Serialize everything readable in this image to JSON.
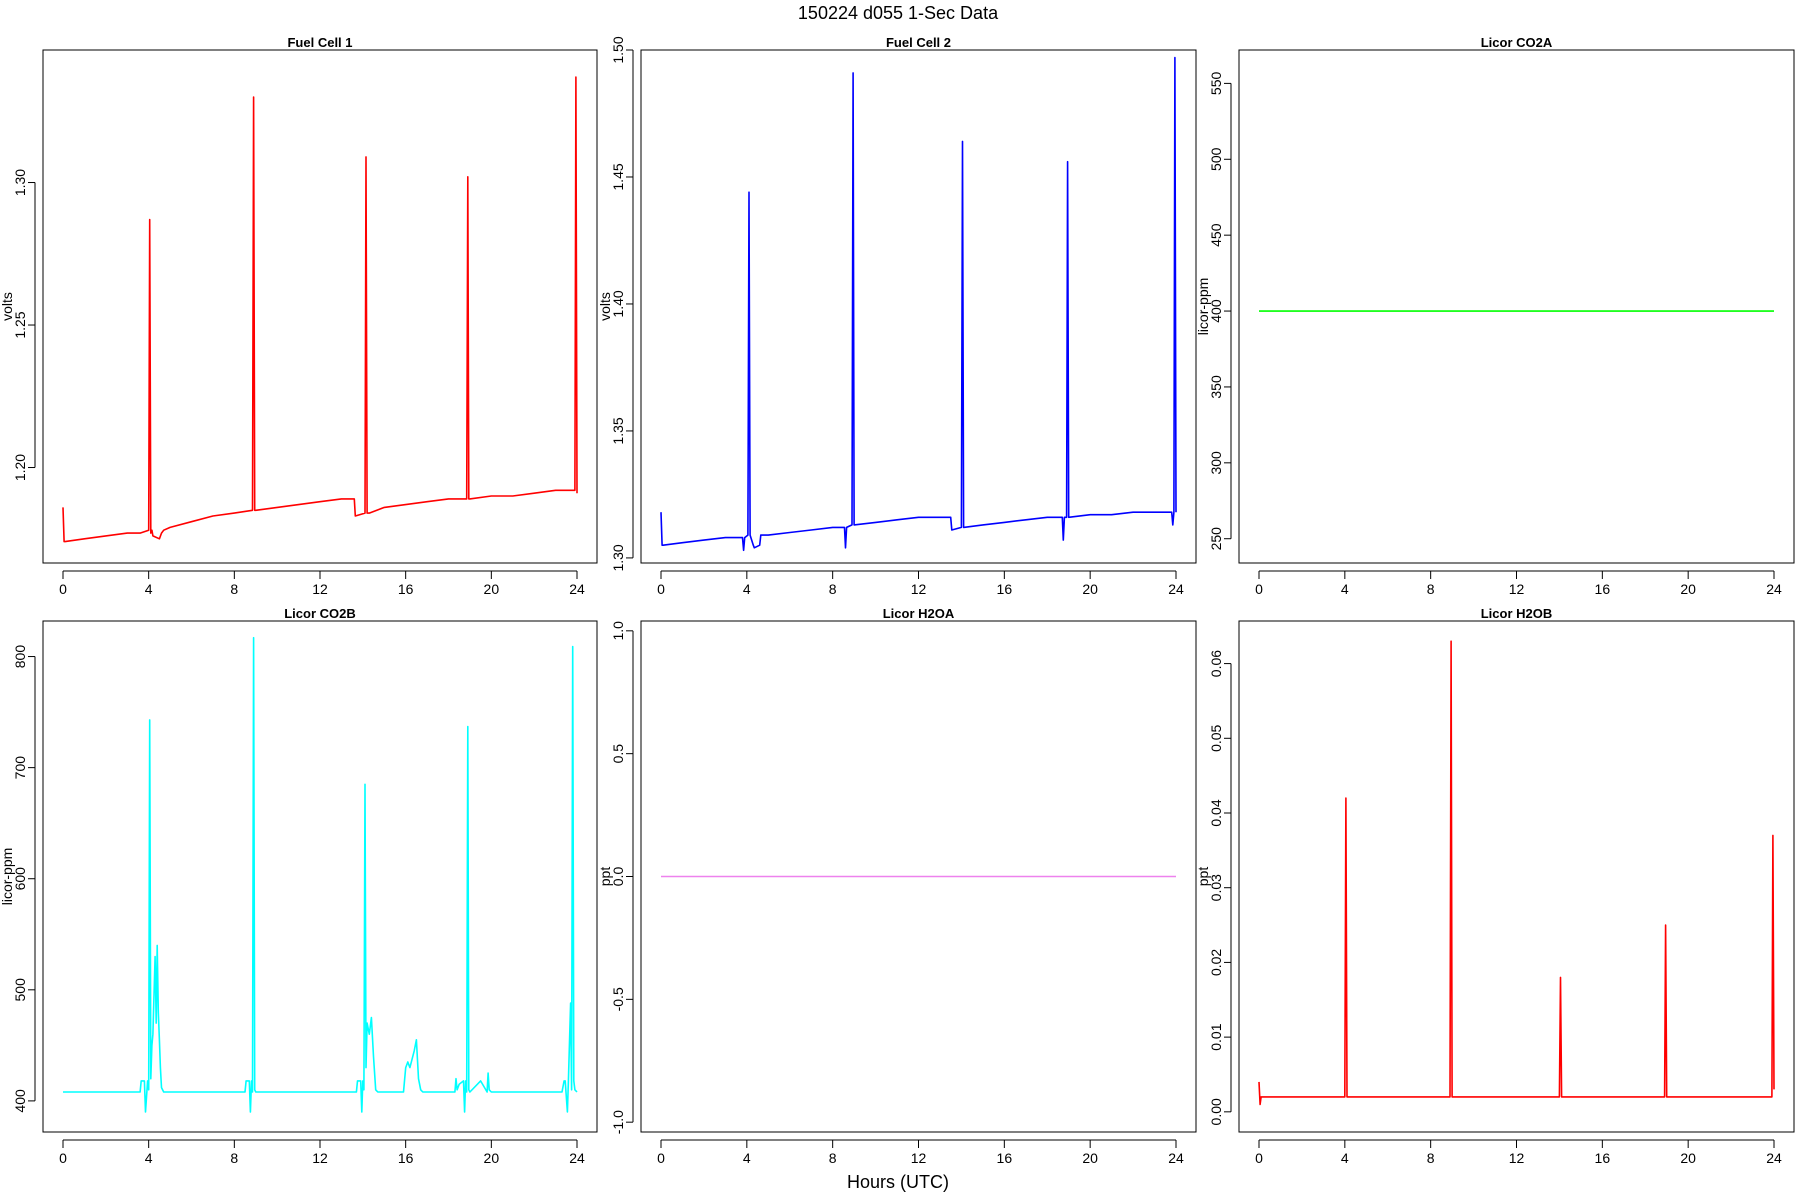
{
  "figure": {
    "title": "150224   d055   1-Sec Data",
    "xlabel": "Hours (UTC)"
  },
  "chart_data": [
    {
      "type": "line",
      "title": "Fuel Cell 1",
      "ylabel": "volts",
      "color": "#ff0000",
      "xlim": [
        0,
        24
      ],
      "ylim": [
        1.1665,
        1.3465
      ],
      "x_ticks": [
        "0",
        "4",
        "8",
        "12",
        "16",
        "20",
        "24"
      ],
      "y_ticks": [
        "1.20",
        "1.25",
        "1.30"
      ],
      "series": [
        {
          "x": [
            0,
            0.05,
            0.1,
            1,
            2,
            3,
            3.6,
            4.0,
            4.05,
            4.1,
            4.15,
            4.2,
            4.5,
            4.6,
            4.7,
            5,
            6,
            7,
            8,
            8.85,
            8.9,
            8.95,
            9,
            10,
            11,
            12,
            13,
            13.6,
            13.65,
            14.1,
            14.15,
            14.2,
            14.3,
            15,
            16,
            17,
            18,
            18.85,
            18.9,
            18.95,
            19,
            20,
            21,
            22,
            23,
            23.9,
            23.95,
            24
          ],
          "y": [
            1.186,
            1.174,
            1.174,
            1.175,
            1.176,
            1.177,
            1.177,
            1.178,
            1.287,
            1.177,
            1.178,
            1.176,
            1.175,
            1.177,
            1.178,
            1.179,
            1.181,
            1.183,
            1.184,
            1.185,
            1.33,
            1.185,
            1.185,
            1.186,
            1.187,
            1.188,
            1.189,
            1.189,
            1.183,
            1.184,
            1.309,
            1.184,
            1.184,
            1.186,
            1.187,
            1.188,
            1.189,
            1.189,
            1.302,
            1.189,
            1.189,
            1.19,
            1.19,
            1.191,
            1.192,
            1.192,
            1.337,
            1.191
          ]
        }
      ]
    },
    {
      "type": "line",
      "title": "Fuel Cell 2",
      "ylabel": "volts",
      "color": "#0000ff",
      "xlim": [
        0,
        24
      ],
      "ylim": [
        1.298,
        1.5
      ],
      "x_ticks": [
        "0",
        "4",
        "8",
        "12",
        "16",
        "20",
        "24"
      ],
      "y_ticks": [
        "1.30",
        "1.35",
        "1.40",
        "1.45",
        "1.50"
      ],
      "series": [
        {
          "x": [
            0,
            0.05,
            0.1,
            1,
            2,
            3,
            3.8,
            3.85,
            3.9,
            4.05,
            4.1,
            4.15,
            4.3,
            4.35,
            4.6,
            4.65,
            5,
            6,
            7,
            8,
            8.55,
            8.6,
            8.65,
            8.9,
            8.95,
            9,
            10,
            11,
            12,
            13.5,
            13.55,
            14,
            14.05,
            14.1,
            15,
            16,
            17,
            18,
            18.7,
            18.75,
            18.8,
            18.9,
            18.95,
            19,
            20,
            21,
            22,
            23,
            23.8,
            23.85,
            23.9,
            23.95,
            24
          ],
          "y": [
            1.318,
            1.305,
            1.305,
            1.306,
            1.307,
            1.308,
            1.308,
            1.303,
            1.308,
            1.309,
            1.444,
            1.309,
            1.305,
            1.304,
            1.305,
            1.309,
            1.309,
            1.31,
            1.311,
            1.312,
            1.312,
            1.304,
            1.312,
            1.313,
            1.491,
            1.313,
            1.314,
            1.315,
            1.316,
            1.316,
            1.311,
            1.312,
            1.464,
            1.312,
            1.313,
            1.314,
            1.315,
            1.316,
            1.316,
            1.307,
            1.316,
            1.316,
            1.456,
            1.316,
            1.317,
            1.317,
            1.318,
            1.318,
            1.318,
            1.313,
            1.318,
            1.497,
            1.318
          ]
        }
      ]
    },
    {
      "type": "line",
      "title": "Licor CO2A",
      "ylabel": "licor-ppm",
      "color": "#00ff00",
      "xlim": [
        0,
        24
      ],
      "ylim": [
        234,
        572
      ],
      "x_ticks": [
        "0",
        "4",
        "8",
        "12",
        "16",
        "20",
        "24"
      ],
      "y_ticks": [
        "250",
        "300",
        "350",
        "400",
        "450",
        "500",
        "550"
      ],
      "series": [
        {
          "x": [
            0,
            24
          ],
          "y": [
            400,
            400
          ]
        }
      ]
    },
    {
      "type": "line",
      "title": "Licor CO2B",
      "ylabel": "licor-ppm",
      "color": "#00ffff",
      "xlim": [
        0,
        24
      ],
      "ylim": [
        372,
        832
      ],
      "x_ticks": [
        "0",
        "4",
        "8",
        "12",
        "16",
        "20",
        "24"
      ],
      "y_ticks": [
        "400",
        "500",
        "600",
        "700",
        "800"
      ],
      "series": [
        {
          "x": [
            0,
            3.6,
            3.65,
            3.8,
            3.85,
            3.95,
            4.0,
            4.05,
            4.1,
            4.15,
            4.2,
            4.3,
            4.35,
            4.4,
            4.45,
            4.5,
            4.55,
            4.6,
            4.7,
            4.8,
            8.5,
            8.55,
            8.7,
            8.75,
            8.8,
            8.85,
            8.9,
            8.95,
            9.0,
            13.7,
            13.75,
            13.9,
            13.95,
            14.0,
            14.05,
            14.1,
            14.15,
            14.2,
            14.3,
            14.4,
            14.5,
            14.6,
            14.7,
            15.9,
            16.0,
            16.1,
            16.2,
            16.4,
            16.5,
            16.6,
            16.7,
            16.8,
            18.3,
            18.35,
            18.4,
            18.5,
            18.7,
            18.75,
            18.8,
            18.85,
            18.9,
            18.95,
            19.0,
            19.5,
            19.8,
            19.85,
            19.9,
            20.0,
            23.3,
            23.4,
            23.45,
            23.55,
            23.6,
            23.7,
            23.75,
            23.8,
            23.85,
            23.9,
            24
          ],
          "y": [
            408,
            408,
            418,
            418,
            390,
            418,
            410,
            743,
            420,
            450,
            460,
            530,
            470,
            540,
            480,
            455,
            430,
            412,
            408,
            408,
            408,
            418,
            418,
            390,
            418,
            408,
            817,
            410,
            408,
            408,
            418,
            418,
            390,
            418,
            410,
            685,
            430,
            470,
            460,
            475,
            440,
            410,
            408,
            408,
            430,
            435,
            430,
            445,
            455,
            420,
            410,
            408,
            408,
            420,
            410,
            415,
            418,
            390,
            418,
            408,
            737,
            410,
            408,
            418,
            408,
            425,
            410,
            408,
            408,
            418,
            418,
            390,
            418,
            488,
            410,
            809,
            418,
            410,
            408
          ]
        }
      ]
    },
    {
      "type": "line",
      "title": "Licor H2OA",
      "ylabel": "ppt",
      "color": "#ee82ee",
      "xlim": [
        0,
        24
      ],
      "ylim": [
        -1.04,
        1.04
      ],
      "x_ticks": [
        "0",
        "4",
        "8",
        "12",
        "16",
        "20",
        "24"
      ],
      "y_ticks": [
        "-1.0",
        "-0.5",
        "0.0",
        "0.5",
        "1.0"
      ],
      "series": [
        {
          "x": [
            0,
            24
          ],
          "y": [
            0,
            0
          ]
        }
      ]
    },
    {
      "type": "line",
      "title": "Licor H2OB",
      "ylabel": "ppt",
      "color": "#ff0000",
      "xlim": [
        0,
        24
      ],
      "ylim": [
        -0.0027,
        0.0657
      ],
      "x_ticks": [
        "0",
        "4",
        "8",
        "12",
        "16",
        "20",
        "24"
      ],
      "y_ticks": [
        "0.00",
        "0.01",
        "0.02",
        "0.03",
        "0.04",
        "0.05",
        "0.06"
      ],
      "series": [
        {
          "x": [
            0,
            0.05,
            0.1,
            4.0,
            4.05,
            4.1,
            8.9,
            8.95,
            9.0,
            14.0,
            14.05,
            14.1,
            18.9,
            18.95,
            19.0,
            23.9,
            23.95,
            24
          ],
          "y": [
            0.004,
            0.001,
            0.002,
            0.002,
            0.042,
            0.002,
            0.002,
            0.063,
            0.002,
            0.002,
            0.018,
            0.002,
            0.002,
            0.025,
            0.002,
            0.002,
            0.037,
            0.003
          ]
        }
      ]
    }
  ]
}
